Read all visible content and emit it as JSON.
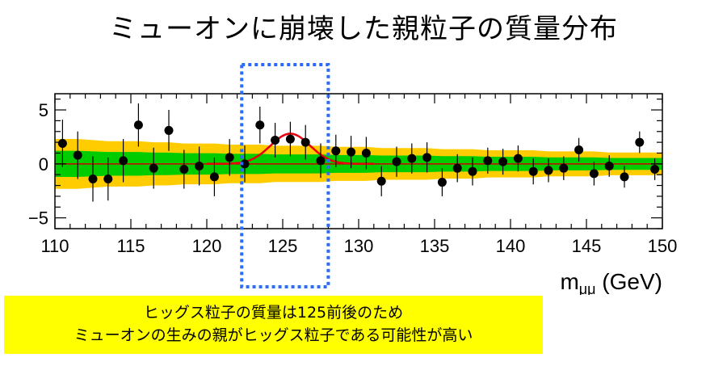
{
  "title": "ミューオンに崩壊した親粒子の質量分布",
  "note": {
    "line1": "ヒッグス粒子の質量は125前後のため",
    "line2": "ミューオンの生みの親がヒッグス粒子である可能性が高い"
  },
  "chart_data": {
    "type": "scatter",
    "title": "",
    "xlabel": "mμμ (GeV)",
    "xlabel_main": "m",
    "xlabel_sub": "μμ",
    "xlabel_unit": " (GeV)",
    "ylabel": "",
    "xlim": [
      110,
      150
    ],
    "ylim": [
      -6,
      6.5
    ],
    "x_ticks": [
      110,
      115,
      120,
      125,
      130,
      135,
      140,
      145,
      150
    ],
    "y_ticks": [
      5,
      0,
      -5
    ],
    "y_tick_labels": [
      "5",
      "0",
      "−5"
    ],
    "grid": false,
    "points": [
      {
        "x": 110.5,
        "y": 1.9,
        "err": 2.2
      },
      {
        "x": 111.5,
        "y": 0.8,
        "err": 2.2
      },
      {
        "x": 112.5,
        "y": -1.4,
        "err": 2.1
      },
      {
        "x": 113.5,
        "y": -1.4,
        "err": 2.0
      },
      {
        "x": 114.5,
        "y": 0.3,
        "err": 2.0
      },
      {
        "x": 115.5,
        "y": 3.6,
        "err": 2.0
      },
      {
        "x": 116.5,
        "y": -0.4,
        "err": 1.9
      },
      {
        "x": 117.5,
        "y": 3.1,
        "err": 1.9
      },
      {
        "x": 118.5,
        "y": -0.5,
        "err": 1.8
      },
      {
        "x": 119.5,
        "y": -0.2,
        "err": 1.8
      },
      {
        "x": 120.5,
        "y": -1.2,
        "err": 1.8
      },
      {
        "x": 121.5,
        "y": 0.6,
        "err": 1.7
      },
      {
        "x": 122.5,
        "y": 0.0,
        "err": 1.7
      },
      {
        "x": 123.5,
        "y": 3.6,
        "err": 1.7
      },
      {
        "x": 124.5,
        "y": 2.2,
        "err": 1.6
      },
      {
        "x": 125.5,
        "y": 2.3,
        "err": 1.6
      },
      {
        "x": 126.5,
        "y": 2.0,
        "err": 1.6
      },
      {
        "x": 127.5,
        "y": 0.3,
        "err": 1.6
      },
      {
        "x": 128.5,
        "y": 1.2,
        "err": 1.5
      },
      {
        "x": 129.5,
        "y": 1.1,
        "err": 1.5
      },
      {
        "x": 130.5,
        "y": 1.0,
        "err": 1.5
      },
      {
        "x": 131.5,
        "y": -1.6,
        "err": 1.4
      },
      {
        "x": 132.5,
        "y": 0.2,
        "err": 1.4
      },
      {
        "x": 133.5,
        "y": 0.5,
        "err": 1.4
      },
      {
        "x": 134.5,
        "y": 0.6,
        "err": 1.4
      },
      {
        "x": 135.5,
        "y": -1.7,
        "err": 1.3
      },
      {
        "x": 136.5,
        "y": -0.4,
        "err": 1.3
      },
      {
        "x": 137.5,
        "y": -0.7,
        "err": 1.3
      },
      {
        "x": 138.5,
        "y": 0.3,
        "err": 1.2
      },
      {
        "x": 139.5,
        "y": 0.2,
        "err": 1.2
      },
      {
        "x": 140.5,
        "y": 0.5,
        "err": 1.2
      },
      {
        "x": 141.5,
        "y": -0.7,
        "err": 1.2
      },
      {
        "x": 142.5,
        "y": -0.6,
        "err": 1.1
      },
      {
        "x": 143.5,
        "y": -0.4,
        "err": 1.1
      },
      {
        "x": 144.5,
        "y": 1.3,
        "err": 1.1
      },
      {
        "x": 145.5,
        "y": -0.9,
        "err": 1.1
      },
      {
        "x": 146.5,
        "y": -0.2,
        "err": 1.0
      },
      {
        "x": 147.5,
        "y": -1.2,
        "err": 1.0
      },
      {
        "x": 148.5,
        "y": 2.0,
        "err": 1.0
      },
      {
        "x": 149.5,
        "y": -0.5,
        "err": 1.0
      }
    ],
    "fit_curve": {
      "type": "gaussian",
      "peak_x": 125.5,
      "amplitude": 2.8,
      "sigma": 1.3,
      "color": "#e8000b"
    },
    "bands": {
      "inner_color": "#00cc00",
      "outer_color": "#ffcc00"
    },
    "highlight_box": {
      "x_range": [
        122.3,
        128
      ],
      "color": "#2b6cff"
    }
  }
}
